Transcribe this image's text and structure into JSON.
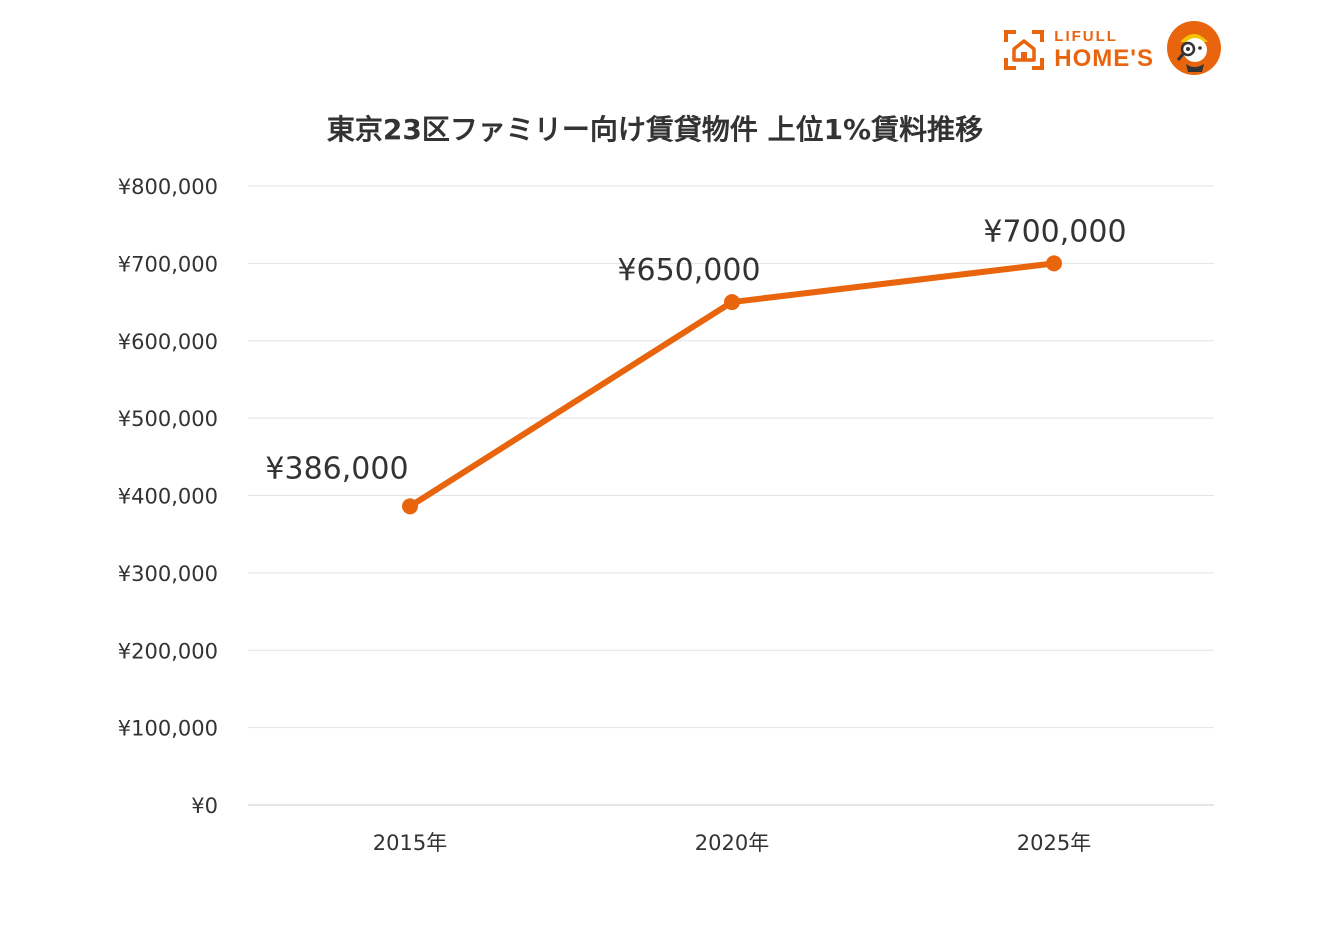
{
  "brand": {
    "name_top": "LIFULL",
    "name_bottom": "HOME'S",
    "color": "#e8650d",
    "icon": "house-logo-icon",
    "mascot_icon": "mascot-detective-icon"
  },
  "chart_data": {
    "type": "line",
    "title": "東京23区ファミリー向け賃貸物件 上位1%賃料推移",
    "categories": [
      "2015年",
      "2020年",
      "2025年"
    ],
    "series": [
      {
        "values": [
          386000,
          650000,
          700000
        ],
        "color": "#e8650d"
      }
    ],
    "data_labels": [
      "¥386,000",
      "¥650,000",
      "¥700,000"
    ],
    "ylim": [
      0,
      800000
    ],
    "y_ticks": [
      0,
      100000,
      200000,
      300000,
      400000,
      500000,
      600000,
      700000,
      800000
    ],
    "y_tick_labels": [
      "¥0",
      "¥100,000",
      "¥200,000",
      "¥300,000",
      "¥400,000",
      "¥500,000",
      "¥600,000",
      "¥700,000",
      "¥800,000"
    ],
    "xlabel": "",
    "ylabel": "",
    "grid": true,
    "legend": "none"
  }
}
